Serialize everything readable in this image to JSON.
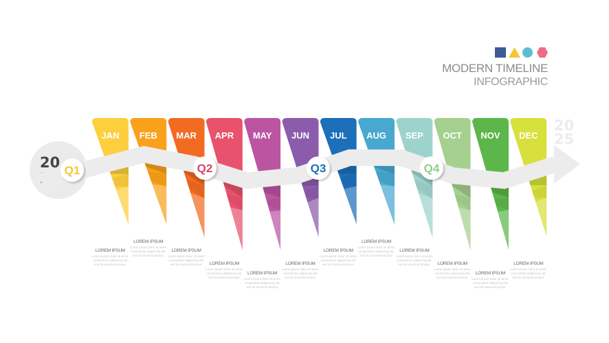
{
  "header": {
    "title": "MODERN TIMELINE",
    "subtitle": "INFOGRAPHIC",
    "logo_shapes": [
      {
        "shape": "square",
        "color": "#3d5a98"
      },
      {
        "shape": "triangle",
        "color": "#f7c531"
      },
      {
        "shape": "circle",
        "color": "#5bbfcf"
      },
      {
        "shape": "hexagon",
        "color": "#ef6b86"
      }
    ]
  },
  "start_year": {
    "top": "20",
    "bottom": "24"
  },
  "end_year": {
    "top": "20",
    "bottom": "25"
  },
  "quarters": [
    {
      "label": "Q1",
      "color": "#f7c531"
    },
    {
      "label": "Q2",
      "color": "#d9456a"
    },
    {
      "label": "Q3",
      "color": "#1f6fb8"
    },
    {
      "label": "Q4",
      "color": "#8fcf8a"
    }
  ],
  "months": [
    {
      "label": "JAN",
      "color": "#fdcf3e",
      "icon": "lightbulb-icon"
    },
    {
      "label": "FEB",
      "color": "#f9a11b",
      "icon": "bar-chart-icon"
    },
    {
      "label": "MAR",
      "color": "#f26b22",
      "icon": "globe-icon"
    },
    {
      "label": "APR",
      "color": "#e8526c",
      "icon": "pie-chart-icon"
    },
    {
      "label": "MAY",
      "color": "#bb55a2",
      "icon": "chat-bubbles-icon"
    },
    {
      "label": "JUN",
      "color": "#8b5cab",
      "icon": "gear-icon"
    },
    {
      "label": "JUL",
      "color": "#1c6fb9",
      "icon": "briefcase-icon"
    },
    {
      "label": "AUG",
      "color": "#48a8cf",
      "icon": "head-idea-icon"
    },
    {
      "label": "SEP",
      "color": "#9dd3cd",
      "icon": "magnifier-icon"
    },
    {
      "label": "OCT",
      "color": "#a6d08f",
      "icon": "monitor-icon"
    },
    {
      "label": "NOV",
      "color": "#5cb64a",
      "icon": "smartphone-icon"
    },
    {
      "label": "DEC",
      "color": "#d7e03c",
      "icon": "world-map-icon"
    }
  ],
  "notes": [
    {
      "title": "LOREM IPSUM",
      "body": "Lorem ipsum dolor sit amet, consectetur adipiscing elit, sed do eiusmod tempor."
    },
    {
      "title": "LOREM IPSUM",
      "body": "Lorem ipsum dolor sit amet, consectetur adipiscing elit, sed do eiusmod tempor."
    },
    {
      "title": "LOREM IPSUM",
      "body": "Lorem ipsum dolor sit amet, consectetur adipiscing elit, sed do eiusmod tempor."
    },
    {
      "title": "LOREM IPSUM",
      "body": "Lorem ipsum dolor sit amet, consectetur adipiscing elit, sed do eiusmod tempor."
    },
    {
      "title": "LOREM IPSUM",
      "body": "Lorem ipsum dolor sit amet, consectetur adipiscing elit, sed do eiusmod tempor."
    },
    {
      "title": "LOREM IPSUM",
      "body": "Lorem ipsum dolor sit amet, consectetur adipiscing elit, sed do eiusmod tempor."
    },
    {
      "title": "LOREM IPSUM",
      "body": "Lorem ipsum dolor sit amet, consectetur adipiscing elit, sed do eiusmod tempor."
    },
    {
      "title": "LOREM IPSUM",
      "body": "Lorem ipsum dolor sit amet, consectetur adipiscing elit, sed do eiusmod tempor."
    },
    {
      "title": "LOREM IPSUM",
      "body": "Lorem ipsum dolor sit amet, consectetur adipiscing elit, sed do eiusmod tempor."
    },
    {
      "title": "LOREM IPSUM",
      "body": "Lorem ipsum dolor sit amet, consectetur adipiscing elit, sed do eiusmod tempor."
    },
    {
      "title": "LOREM IPSUM",
      "body": "Lorem ipsum dolor sit amet, consectetur adipiscing elit, sed do eiusmod tempor."
    },
    {
      "title": "LOREM IPSUM",
      "body": "Lorem ipsum dolor sit amet, consectetur adipiscing elit, sed do eiusmod tempor."
    }
  ]
}
